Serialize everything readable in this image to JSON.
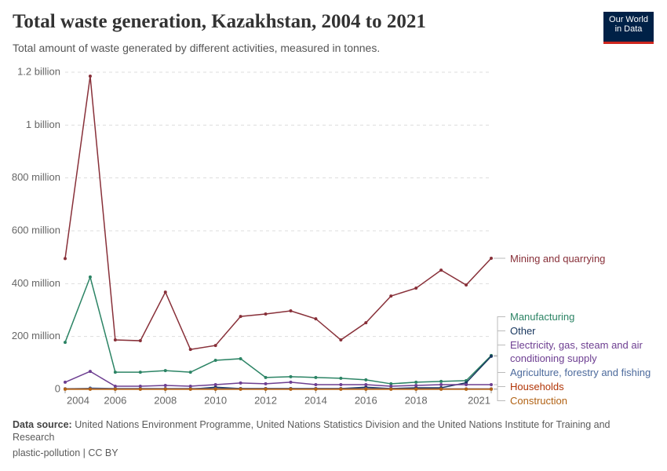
{
  "header": {
    "title": "Total waste generation, Kazakhstan, 2004 to 2021",
    "subtitle": "Total amount of waste generated by different activities, measured in tonnes.",
    "logo": "Our World in Data"
  },
  "footer": {
    "source_label": "Data source:",
    "source_text": "United Nations Environment Programme, United Nations Statistics Division and the United Nations Institute for Training and Research",
    "note": "plastic-pollution | CC BY"
  },
  "chart_data": {
    "type": "line",
    "x": [
      2004,
      2005,
      2006,
      2007,
      2008,
      2009,
      2010,
      2011,
      2012,
      2013,
      2014,
      2015,
      2016,
      2017,
      2018,
      2019,
      2020,
      2021
    ],
    "xlim": [
      2004,
      2021
    ],
    "xticks": [
      2004,
      2006,
      2008,
      2010,
      2012,
      2014,
      2016,
      2018,
      2021
    ],
    "ylim": [
      0,
      1200000000
    ],
    "yticks": [
      0,
      {
        "value": 200000000,
        "label": "200 million"
      },
      {
        "value": 400000000,
        "label": "400 million"
      },
      {
        "value": 600000000,
        "label": "600 million"
      },
      {
        "value": 800000000,
        "label": "800 million"
      },
      {
        "value": 1000000000,
        "label": "1 billion"
      },
      {
        "value": 1200000000,
        "label": "1.2 billion"
      }
    ],
    "grid": true,
    "series": [
      {
        "name": "Mining and quarrying",
        "color": "#883039",
        "values": [
          495000000,
          1185000000,
          187000000,
          184000000,
          368000000,
          151000000,
          166000000,
          276000000,
          285000000,
          297000000,
          267000000,
          187000000,
          252000000,
          353000000,
          383000000,
          451000000,
          395000000,
          496000000
        ]
      },
      {
        "name": "Manufacturing",
        "color": "#2c8465",
        "values": [
          178000000,
          425000000,
          65000000,
          65000000,
          71000000,
          65000000,
          110000000,
          116000000,
          45000000,
          48000000,
          45000000,
          42000000,
          36000000,
          21000000,
          27000000,
          30000000,
          33000000,
          128000000
        ]
      },
      {
        "name": "Other",
        "color": "#18375f",
        "values": [
          2000000,
          3000000,
          1000000,
          1000000,
          1000000,
          1000000,
          8000000,
          3000000,
          3000000,
          3000000,
          3000000,
          3000000,
          8000000,
          3000000,
          6000000,
          6000000,
          25000000,
          125000000
        ]
      },
      {
        "name": "Electricity, gas, steam and air conditioning supply",
        "color": "#6d3e91",
        "values": [
          27000000,
          68000000,
          12000000,
          12000000,
          15000000,
          12000000,
          18000000,
          24000000,
          21000000,
          27000000,
          18000000,
          18000000,
          18000000,
          12000000,
          15000000,
          18000000,
          18000000,
          18000000
        ]
      },
      {
        "name": "Agriculture, forestry and fishing",
        "color": "#4c6a9c",
        "values": [
          null,
          5000000,
          3000000,
          3000000,
          3000000,
          3000000,
          3000000,
          3000000,
          3000000,
          3000000,
          3000000,
          3000000,
          3000000,
          3000000,
          2000000,
          2000000,
          2000000,
          2000000
        ]
      },
      {
        "name": "Households",
        "color": "#b13507",
        "values": [
          1000000,
          1000000,
          1000000,
          1000000,
          1000000,
          1000000,
          1000000,
          1000000,
          1000000,
          1000000,
          1000000,
          1000000,
          1000000,
          1000000,
          1000000,
          1000000,
          1000000,
          1000000
        ]
      },
      {
        "name": "Construction",
        "color": "#b16214",
        "values": [
          500000,
          500000,
          500000,
          500000,
          500000,
          500000,
          500000,
          500000,
          500000,
          500000,
          500000,
          500000,
          500000,
          500000,
          500000,
          500000,
          500000,
          500000
        ]
      }
    ]
  }
}
